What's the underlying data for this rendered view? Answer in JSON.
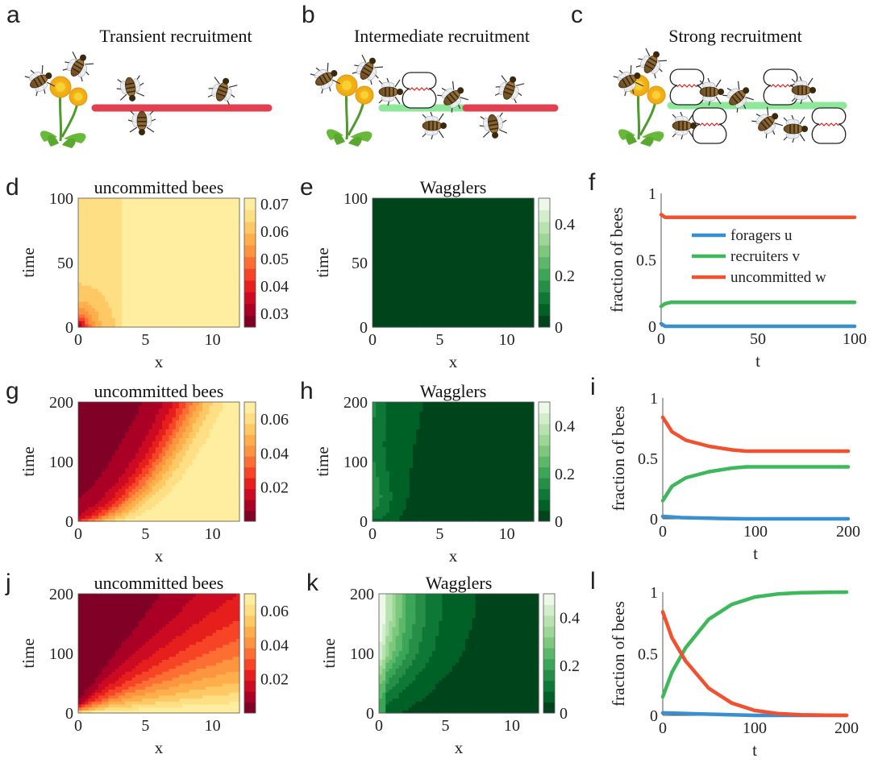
{
  "panels": {
    "a": {
      "letter": "a",
      "title": "Transient recruitment"
    },
    "b": {
      "letter": "b",
      "title": "Intermediate recruitment"
    },
    "c": {
      "letter": "c",
      "title": "Strong recruitment"
    }
  },
  "colors": {
    "path_red": "#e0404f",
    "path_green": "#8fe79b",
    "series_u": "#3a8fd0",
    "series_v": "#3db85a",
    "series_w": "#f2512f"
  },
  "chart_data": [
    {
      "id": "d",
      "letter": "d",
      "type": "heatmap",
      "title": "uncommitted bees",
      "xlabel": "x",
      "ylabel": "time",
      "xlim": [
        0,
        12
      ],
      "ylim": [
        0,
        100
      ],
      "xticks": [
        "0",
        "5",
        "10"
      ],
      "yticks": [
        "0",
        "50",
        "100"
      ],
      "colormap": "YlOrRd_reversed",
      "clim": [
        0.025,
        0.072
      ],
      "cbar_ticks": [
        "0.03",
        "0.04",
        "0.05",
        "0.06",
        "0.07"
      ],
      "regime": "transient"
    },
    {
      "id": "e",
      "letter": "e",
      "type": "heatmap",
      "title": "Wagglers",
      "xlabel": "x",
      "ylabel": "time",
      "xlim": [
        0,
        12
      ],
      "ylim": [
        0,
        100
      ],
      "xticks": [
        "0",
        "5",
        "10"
      ],
      "yticks": [
        "0",
        "50",
        "100"
      ],
      "colormap": "Greens_reversed",
      "clim": [
        0,
        0.5
      ],
      "cbar_ticks": [
        "0",
        "0.2",
        "0.4"
      ],
      "regime": "transient"
    },
    {
      "id": "f",
      "letter": "f",
      "type": "line",
      "xlabel": "t",
      "ylabel": "fraction of bees",
      "xlim": [
        0,
        100
      ],
      "ylim": [
        0,
        1
      ],
      "xticks": [
        "0",
        "50",
        "100"
      ],
      "yticks": [
        "0",
        "0.5",
        "1"
      ],
      "legend": "center-right",
      "series": [
        {
          "name": "foragers u",
          "x": [
            0,
            2,
            5,
            100
          ],
          "y": [
            0.02,
            0.0,
            0.0,
            0.0
          ]
        },
        {
          "name": "recruiters v",
          "x": [
            0,
            2,
            5,
            100
          ],
          "y": [
            0.15,
            0.17,
            0.18,
            0.18
          ]
        },
        {
          "name": "uncommitted w",
          "x": [
            0,
            2,
            5,
            100
          ],
          "y": [
            0.84,
            0.82,
            0.82,
            0.82
          ]
        }
      ]
    },
    {
      "id": "g",
      "letter": "g",
      "type": "heatmap",
      "title": "uncommitted bees",
      "xlabel": "x",
      "ylabel": "time",
      "xlim": [
        0,
        12
      ],
      "ylim": [
        0,
        200
      ],
      "xticks": [
        "0",
        "5",
        "10"
      ],
      "yticks": [
        "0",
        "100",
        "200"
      ],
      "colormap": "YlOrRd_reversed",
      "clim": [
        0,
        0.07
      ],
      "cbar_ticks": [
        "0.02",
        "0.04",
        "0.06"
      ],
      "regime": "intermediate"
    },
    {
      "id": "h",
      "letter": "h",
      "type": "heatmap",
      "title": "Wagglers",
      "xlabel": "x",
      "ylabel": "time",
      "xlim": [
        0,
        12
      ],
      "ylim": [
        0,
        200
      ],
      "xticks": [
        "0",
        "5",
        "10"
      ],
      "yticks": [
        "0",
        "100",
        "200"
      ],
      "colormap": "Greens_reversed",
      "clim": [
        0,
        0.5
      ],
      "cbar_ticks": [
        "0",
        "0.2",
        "0.4"
      ],
      "regime": "intermediate"
    },
    {
      "id": "i",
      "letter": "i",
      "type": "line",
      "xlabel": "t",
      "ylabel": "fraction of bees",
      "xlim": [
        0,
        200
      ],
      "ylim": [
        0,
        1
      ],
      "xticks": [
        "0",
        "100",
        "200"
      ],
      "yticks": [
        "0",
        "0.5",
        "1"
      ],
      "series": [
        {
          "name": "foragers u",
          "x": [
            0,
            20,
            50,
            90,
            200
          ],
          "y": [
            0.02,
            0.01,
            0.005,
            0.0,
            0.0
          ]
        },
        {
          "name": "recruiters v",
          "x": [
            0,
            10,
            25,
            50,
            75,
            90,
            200
          ],
          "y": [
            0.15,
            0.27,
            0.34,
            0.39,
            0.42,
            0.43,
            0.43
          ]
        },
        {
          "name": "uncommitted w",
          "x": [
            0,
            10,
            25,
            50,
            75,
            90,
            200
          ],
          "y": [
            0.84,
            0.72,
            0.65,
            0.6,
            0.57,
            0.56,
            0.56
          ]
        }
      ]
    },
    {
      "id": "j",
      "letter": "j",
      "type": "heatmap",
      "title": "uncommitted bees",
      "xlabel": "x",
      "ylabel": "time",
      "xlim": [
        0,
        12
      ],
      "ylim": [
        0,
        200
      ],
      "xticks": [
        "0",
        "5",
        "10"
      ],
      "yticks": [
        "0",
        "100",
        "200"
      ],
      "colormap": "YlOrRd_reversed",
      "clim": [
        0,
        0.07
      ],
      "cbar_ticks": [
        "0.02",
        "0.04",
        "0.06"
      ],
      "regime": "strong"
    },
    {
      "id": "k",
      "letter": "k",
      "type": "heatmap",
      "title": "Wagglers",
      "xlabel": "x",
      "ylabel": "time",
      "xlim": [
        0,
        12
      ],
      "ylim": [
        0,
        200
      ],
      "xticks": [
        "0",
        "5",
        "10"
      ],
      "yticks": [
        "0",
        "100",
        "200"
      ],
      "colormap": "Greens_reversed",
      "clim": [
        0,
        0.5
      ],
      "cbar_ticks": [
        "0",
        "0.2",
        "0.4"
      ],
      "regime": "strong"
    },
    {
      "id": "l",
      "letter": "l",
      "type": "line",
      "xlabel": "t",
      "ylabel": "fraction of bees",
      "xlim": [
        0,
        200
      ],
      "ylim": [
        0,
        1
      ],
      "xticks": [
        "0",
        "100",
        "200"
      ],
      "yticks": [
        "0",
        "0.5",
        "1"
      ],
      "series": [
        {
          "name": "foragers u",
          "x": [
            0,
            50,
            100,
            150,
            200
          ],
          "y": [
            0.02,
            0.01,
            0.0,
            0.0,
            0.0
          ]
        },
        {
          "name": "recruiters v",
          "x": [
            0,
            10,
            25,
            50,
            75,
            100,
            125,
            150,
            175,
            200
          ],
          "y": [
            0.15,
            0.35,
            0.55,
            0.78,
            0.9,
            0.96,
            0.985,
            0.995,
            0.998,
            1.0
          ]
        },
        {
          "name": "uncommitted w",
          "x": [
            0,
            10,
            25,
            50,
            75,
            100,
            125,
            150,
            175,
            200
          ],
          "y": [
            0.84,
            0.63,
            0.44,
            0.22,
            0.1,
            0.04,
            0.015,
            0.005,
            0.002,
            0.0
          ]
        }
      ]
    }
  ]
}
